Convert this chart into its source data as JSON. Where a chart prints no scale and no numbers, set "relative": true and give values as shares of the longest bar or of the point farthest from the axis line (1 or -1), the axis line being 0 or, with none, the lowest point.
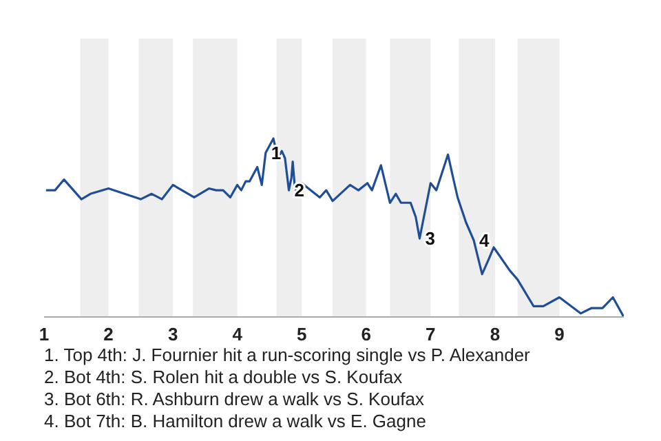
{
  "chart_data": {
    "type": "line",
    "relative": true,
    "xlim": [
      1,
      10
    ],
    "xticks": [
      1,
      2,
      3,
      4,
      5,
      6,
      7,
      8,
      9
    ],
    "bands": [
      {
        "axis": "x",
        "from": 1.56,
        "to": 2,
        "color": "#eeeeee"
      },
      {
        "axis": "x",
        "from": 2.47,
        "to": 3,
        "color": "#eeeeee"
      },
      {
        "axis": "x",
        "from": 3.31,
        "to": 4,
        "color": "#eeeeee"
      },
      {
        "axis": "x",
        "from": 4.61,
        "to": 5,
        "color": "#eeeeee"
      },
      {
        "axis": "x",
        "from": 5.48,
        "to": 6,
        "color": "#eeeeee"
      },
      {
        "axis": "x",
        "from": 6.37,
        "to": 7,
        "color": "#eeeeee"
      },
      {
        "axis": "x",
        "from": 7.44,
        "to": 8,
        "color": "#eeeeee"
      },
      {
        "axis": "x",
        "from": 8.35,
        "to": 9,
        "color": "#eeeeee"
      }
    ],
    "series": [
      {
        "color": "#1f4e96",
        "x": [
          1.03,
          1.17,
          1.31,
          1.58,
          1.72,
          2.0,
          2.5,
          2.67,
          2.83,
          3.0,
          3.33,
          3.56,
          3.67,
          3.78,
          3.89,
          4.0,
          4.06,
          4.13,
          4.19,
          4.31,
          4.38,
          4.44,
          4.56,
          4.63,
          4.69,
          4.74,
          4.8,
          4.84,
          4.86,
          4.89,
          4.94,
          5.0,
          5.28,
          5.38,
          5.48,
          5.75,
          5.88,
          6.02,
          6.09,
          6.23,
          6.37,
          6.46,
          6.54,
          6.69,
          6.77,
          6.83,
          7.0,
          7.09,
          7.27,
          7.35,
          7.42,
          7.55,
          7.67,
          7.8,
          7.91,
          7.98,
          8.23,
          8.35,
          8.6,
          8.75,
          9.0,
          9.33,
          9.5,
          9.67,
          9.83,
          10
        ],
        "values": [
          0.71,
          0.71,
          0.77,
          0.66,
          0.69,
          0.72,
          0.66,
          0.69,
          0.66,
          0.74,
          0.67,
          0.72,
          0.71,
          0.71,
          0.67,
          0.74,
          0.71,
          0.76,
          0.76,
          0.84,
          0.74,
          0.92,
          1,
          0.89,
          0.93,
          0.89,
          0.71,
          0.78,
          0.87,
          0.74,
          0.67,
          0.75,
          0.67,
          0.71,
          0.65,
          0.74,
          0.71,
          0.75,
          0.71,
          0.85,
          0.64,
          0.69,
          0.64,
          0.64,
          0.56,
          0.44,
          0.75,
          0.71,
          0.91,
          0.78,
          0.67,
          0.53,
          0.43,
          0.24,
          0.33,
          0.39,
          0.26,
          0.21,
          0.06,
          0.06,
          0.11,
          0.02,
          0.05,
          0.05,
          0.11,
          0
        ]
      }
    ],
    "annotations": [
      {
        "text": "1",
        "x": 4.44,
        "y": 0.92
      },
      {
        "text": "2",
        "x": 4.8,
        "y": 0.71
      },
      {
        "text": "3",
        "x": 6.83,
        "y": 0.44
      },
      {
        "text": "4",
        "x": 7.67,
        "y": 0.43
      },
      "1. Top 4th: J. Fournier hit a run-scoring single vs P. Alexander",
      "2. Bot 4th: S. Rolen hit a double vs S. Koufax",
      "3. Bot 6th: R. Ashburn drew a walk vs S. Koufax",
      "4. Bot 7th: B. Hamilton drew a walk vs E. Gagne"
    ]
  }
}
